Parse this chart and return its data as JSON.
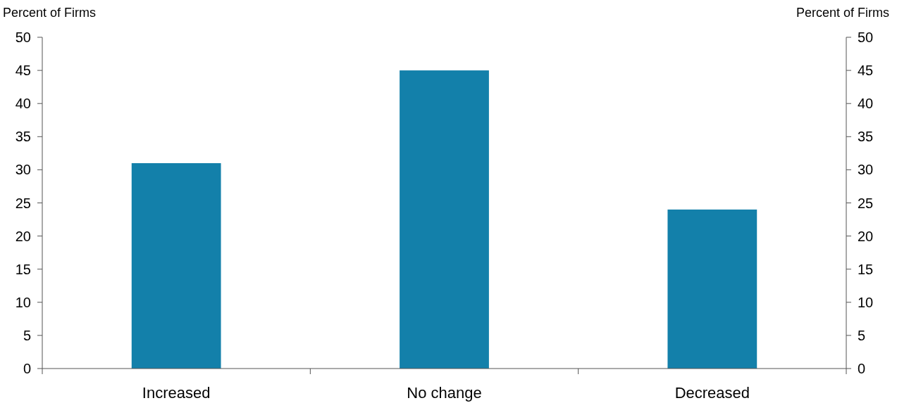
{
  "chart_data": {
    "type": "bar",
    "ylabel": "Percent of Firms",
    "y2label": "Percent of Firms",
    "categories": [
      "Increased",
      "No change",
      "Decreased"
    ],
    "values": [
      31,
      45,
      24
    ],
    "color": "#1380aa",
    "ylim": [
      0,
      50
    ],
    "yticks": [
      0,
      5,
      10,
      15,
      20,
      25,
      30,
      35,
      40,
      45,
      50
    ],
    "y2lim": [
      0,
      50
    ],
    "y2ticks": [
      0,
      5,
      10,
      15,
      20,
      25,
      30,
      35,
      40,
      45,
      50
    ],
    "grid": false
  }
}
